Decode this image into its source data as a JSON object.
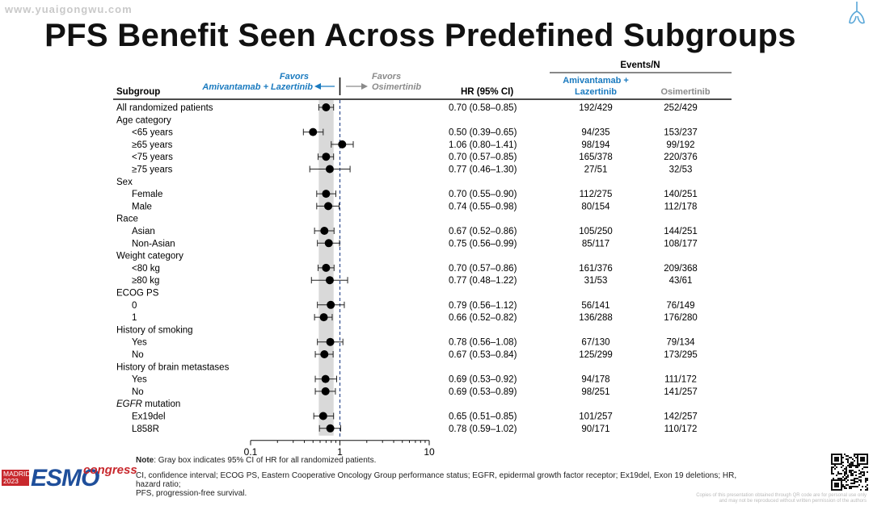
{
  "watermark": "www.yuaigongwu.com",
  "title": "PFS Benefit Seen Across Predefined Subgroups",
  "icons": {
    "corner": "lung-icon",
    "qr": "qr-code-icon"
  },
  "colors": {
    "amivantamab": "#1a7abf",
    "osimertinib": "#8a8a8a",
    "ci_box": "#d9d9d9",
    "ref_line": "#2e4a8c"
  },
  "header": {
    "subgroup": "Subgroup",
    "favors_left_1": "Favors",
    "favors_left_2": "Amivantamab + Lazertinib",
    "favors_right_1": "Favors",
    "favors_right_2": "Osimertinib",
    "hr": "HR (95% CI)",
    "events_n": "Events/N",
    "arm_a_1": "Amivantamab +",
    "arm_a_2": "Lazertinib",
    "arm_b": "Osimertinib"
  },
  "chart_data": {
    "type": "forest",
    "x_scale": "log",
    "xlim": [
      0.1,
      10
    ],
    "x_ticks": [
      "0.1",
      "1",
      "10"
    ],
    "reference_line": 1,
    "ci_box": [
      0.58,
      0.85
    ],
    "rows": [
      {
        "label": "All randomized patients",
        "indent": 0,
        "hr": 0.7,
        "lo": 0.58,
        "hi": 0.85,
        "hr_text": "0.70 (0.58–0.85)",
        "a": "192/429",
        "b": "252/429"
      },
      {
        "label": "Age category",
        "indent": 0,
        "header": true
      },
      {
        "label": "<65 years",
        "indent": 1,
        "hr": 0.5,
        "lo": 0.39,
        "hi": 0.65,
        "hr_text": "0.50 (0.39–0.65)",
        "a": "94/235",
        "b": "153/237"
      },
      {
        "label": "≥65 years",
        "indent": 1,
        "hr": 1.06,
        "lo": 0.8,
        "hi": 1.41,
        "hr_text": "1.06 (0.80–1.41)",
        "a": "98/194",
        "b": "99/192"
      },
      {
        "label": "<75 years",
        "indent": 1,
        "hr": 0.7,
        "lo": 0.57,
        "hi": 0.85,
        "hr_text": "0.70 (0.57–0.85)",
        "a": "165/378",
        "b": "220/376"
      },
      {
        "label": "≥75 years",
        "indent": 1,
        "hr": 0.77,
        "lo": 0.46,
        "hi": 1.3,
        "hr_text": "0.77 (0.46–1.30)",
        "a": "27/51",
        "b": "32/53"
      },
      {
        "label": "Sex",
        "indent": 0,
        "header": true
      },
      {
        "label": "Female",
        "indent": 1,
        "hr": 0.7,
        "lo": 0.55,
        "hi": 0.9,
        "hr_text": "0.70 (0.55–0.90)",
        "a": "112/275",
        "b": "140/251"
      },
      {
        "label": "Male",
        "indent": 1,
        "hr": 0.74,
        "lo": 0.55,
        "hi": 0.98,
        "hr_text": "0.74 (0.55–0.98)",
        "a": "80/154",
        "b": "112/178"
      },
      {
        "label": "Race",
        "indent": 0,
        "header": true
      },
      {
        "label": "Asian",
        "indent": 1,
        "hr": 0.67,
        "lo": 0.52,
        "hi": 0.86,
        "hr_text": "0.67 (0.52–0.86)",
        "a": "105/250",
        "b": "144/251"
      },
      {
        "label": "Non-Asian",
        "indent": 1,
        "hr": 0.75,
        "lo": 0.56,
        "hi": 0.99,
        "hr_text": "0.75 (0.56–0.99)",
        "a": "85/117",
        "b": "108/177"
      },
      {
        "label": "Weight category",
        "indent": 0,
        "header": true
      },
      {
        "label": "<80 kg",
        "indent": 1,
        "hr": 0.7,
        "lo": 0.57,
        "hi": 0.86,
        "hr_text": "0.70 (0.57–0.86)",
        "a": "161/376",
        "b": "209/368"
      },
      {
        "label": "≥80 kg",
        "indent": 1,
        "hr": 0.77,
        "lo": 0.48,
        "hi": 1.22,
        "hr_text": "0.77 (0.48–1.22)",
        "a": "31/53",
        "b": "43/61"
      },
      {
        "label": "ECOG PS",
        "indent": 0,
        "header": true
      },
      {
        "label": "0",
        "indent": 1,
        "hr": 0.79,
        "lo": 0.56,
        "hi": 1.12,
        "hr_text": "0.79 (0.56–1.12)",
        "a": "56/141",
        "b": "76/149"
      },
      {
        "label": "1",
        "indent": 1,
        "hr": 0.66,
        "lo": 0.52,
        "hi": 0.82,
        "hr_text": "0.66 (0.52–0.82)",
        "a": "136/288",
        "b": "176/280"
      },
      {
        "label": "History of smoking",
        "indent": 0,
        "header": true
      },
      {
        "label": "Yes",
        "indent": 1,
        "hr": 0.78,
        "lo": 0.56,
        "hi": 1.08,
        "hr_text": "0.78 (0.56–1.08)",
        "a": "67/130",
        "b": "79/134"
      },
      {
        "label": "No",
        "indent": 1,
        "hr": 0.67,
        "lo": 0.53,
        "hi": 0.84,
        "hr_text": "0.67 (0.53–0.84)",
        "a": "125/299",
        "b": "173/295"
      },
      {
        "label": "History of brain metastases",
        "indent": 0,
        "header": true
      },
      {
        "label": "Yes",
        "indent": 1,
        "hr": 0.69,
        "lo": 0.53,
        "hi": 0.92,
        "hr_text": "0.69 (0.53–0.92)",
        "a": "94/178",
        "b": "111/172"
      },
      {
        "label": "No",
        "indent": 1,
        "hr": 0.69,
        "lo": 0.53,
        "hi": 0.89,
        "hr_text": "0.69 (0.53–0.89)",
        "a": "98/251",
        "b": "141/257"
      },
      {
        "label": "EGFR",
        "label_suffix": " mutation",
        "indent": 0,
        "header": true,
        "italic_prefix": true
      },
      {
        "label": "Ex19del",
        "indent": 1,
        "hr": 0.65,
        "lo": 0.51,
        "hi": 0.85,
        "hr_text": "0.65 (0.51–0.85)",
        "a": "101/257",
        "b": "142/257"
      },
      {
        "label": "L858R",
        "indent": 1,
        "hr": 0.78,
        "lo": 0.59,
        "hi": 1.02,
        "hr_text": "0.78 (0.59–1.02)",
        "a": "90/171",
        "b": "110/172"
      }
    ]
  },
  "footnotes": {
    "note_label": "Note",
    "note_text": ": Gray box indicates 95% CI of HR for all randomized patients.",
    "abbrev_1": "CI, confidence interval; ECOG PS, Eastern Cooperative Oncology Group performance status; EGFR, epidermal growth factor receptor; Ex19del, Exon 19 deletions; HR, hazard ratio;",
    "abbrev_2": "PFS, progression-free survival."
  },
  "logo": {
    "city": "MADRID",
    "year": "2023",
    "brand": "ESMO",
    "suffix": "congress"
  },
  "copyright_1": "Copies of this presentation obtained through QR code are for personal use only",
  "copyright_2": "and may not be reproduced without written permission of the authors"
}
